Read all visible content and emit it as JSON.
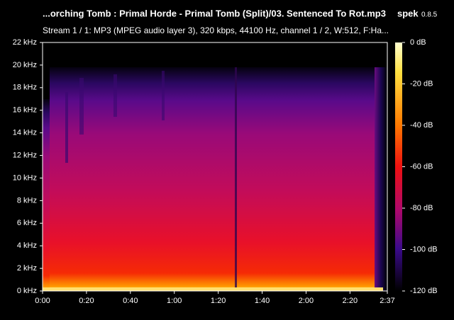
{
  "chart_data": {
    "type": "spectrogram",
    "title": "...orching Tomb : Primal Horde - Primal Tomb (Split)/03. Sentenced To Rot.mp3",
    "app_name": "spek",
    "app_version": "0.8.5",
    "subtitle": "Stream 1 / 1: MP3 (MPEG audio layer 3), 320 kbps, 44100 Hz, channel 1 / 2, W:512, F:Ha...",
    "xlim": [
      0,
      157
    ],
    "xticks": [
      {
        "value": 0,
        "label": "0:00"
      },
      {
        "value": 20,
        "label": "0:20"
      },
      {
        "value": 40,
        "label": "0:40"
      },
      {
        "value": 60,
        "label": "1:00"
      },
      {
        "value": 80,
        "label": "1:20"
      },
      {
        "value": 100,
        "label": "1:40"
      },
      {
        "value": 120,
        "label": "2:00"
      },
      {
        "value": 140,
        "label": "2:20"
      },
      {
        "value": 157,
        "label": "2:37"
      }
    ],
    "ylim": [
      0,
      22
    ],
    "yticks": [
      {
        "value": 0,
        "label": "0 kHz"
      },
      {
        "value": 2,
        "label": "2 kHz"
      },
      {
        "value": 4,
        "label": "4 kHz"
      },
      {
        "value": 6,
        "label": "6 kHz"
      },
      {
        "value": 8,
        "label": "8 kHz"
      },
      {
        "value": 10,
        "label": "10 kHz"
      },
      {
        "value": 12,
        "label": "12 kHz"
      },
      {
        "value": 14,
        "label": "14 kHz"
      },
      {
        "value": 16,
        "label": "16 kHz"
      },
      {
        "value": 18,
        "label": "18 kHz"
      },
      {
        "value": 20,
        "label": "20 kHz"
      },
      {
        "value": 22,
        "label": "22 kHz"
      }
    ],
    "colorbar_lim": [
      -120,
      0
    ],
    "colorbar_ticks": [
      {
        "value": 0,
        "label": "0 dB"
      },
      {
        "value": -20,
        "label": "-20 dB"
      },
      {
        "value": -40,
        "label": "-40 dB"
      },
      {
        "value": -60,
        "label": "-60 dB"
      },
      {
        "value": -80,
        "label": "-80 dB"
      },
      {
        "value": -100,
        "label": "-100 dB"
      },
      {
        "value": -120,
        "label": "-120 dB"
      }
    ]
  }
}
